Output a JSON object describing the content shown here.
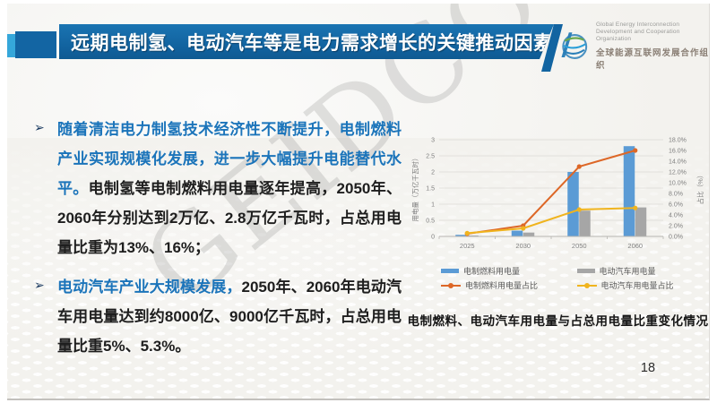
{
  "slide": {
    "title": "远期电制氢、电动汽车等是电力需求增长的关键推动因素",
    "watermark": "GEIDCO",
    "page_number": "18",
    "bullet_marker": "➢"
  },
  "logo": {
    "icon": "globe-icon",
    "org_en_line1": "Global Energy Interconnection",
    "org_en_line2": "Development and Cooperation Organization",
    "org_zh": "全球能源互联网发展合作组织"
  },
  "bullets": [
    {
      "highlight": "随着清洁电力制氢技术经济性不断提升，电制燃料产业实现规模化发展，进一步大幅提升电能替代水平。",
      "body": "电制氢等电制燃料用电量逐年提高，2050年、2060年分别达到2万亿、2.8万亿千瓦时，占总用电量比重为13%、16%；"
    },
    {
      "highlight": "电动汽车产业大规模发展，",
      "body": "2050年、2060年电动汽车用电量达到约8000亿、9000亿千瓦时，占总用电量比重5%、5.3%。"
    }
  ],
  "chart_data": {
    "type": "bar",
    "combo": "bars on left axis + lines on right axis",
    "title": "电制燃料、电动汽车用电量与占总用电量比重变化情况",
    "categories": [
      "2025",
      "2030",
      "2050",
      "2060"
    ],
    "series": [
      {
        "name": "电制燃料用电量",
        "kind": "bar",
        "axis": "left",
        "color": "#5b9bd5",
        "values": [
          0.05,
          0.18,
          2.0,
          2.8
        ]
      },
      {
        "name": "电动汽车用电量",
        "kind": "bar",
        "axis": "left",
        "color": "#a6a6a6",
        "values": [
          0.03,
          0.12,
          0.8,
          0.9
        ]
      },
      {
        "name": "电制燃料用电量占比",
        "kind": "line",
        "axis": "right",
        "color": "#dd6727",
        "values": [
          0.5,
          2.0,
          13.0,
          16.0
        ]
      },
      {
        "name": "电动汽车用电量占比",
        "kind": "line",
        "axis": "right",
        "color": "#f0b41e",
        "values": [
          0.6,
          1.5,
          5.0,
          5.3
        ]
      }
    ],
    "left_axis": {
      "label": "用电量（万亿千瓦时）",
      "min": 0,
      "max": 3,
      "step": 0.5,
      "tick_labels": [
        "0",
        "0.5",
        "1",
        "1.5",
        "2",
        "2.5",
        "3"
      ]
    },
    "right_axis": {
      "label": "占比（%）",
      "min": 0,
      "max": 18,
      "step": 2,
      "tick_labels": [
        "0.0%",
        "2.0%",
        "4.0%",
        "6.0%",
        "8.0%",
        "10.0%",
        "12.0%",
        "14.0%",
        "16.0%",
        "18.0%"
      ]
    },
    "grid": true,
    "legend_position": "bottom"
  },
  "colors": {
    "banner_blue": "#11619d",
    "accent_light_blue": "#35a7da",
    "accent_dark_blue": "#1365a3",
    "highlight_text_blue": "#1b74ba",
    "body_text": "#1e1e1e",
    "axis_text_gray": "#7f7f7f",
    "gridline_gray": "#dcdad6"
  }
}
